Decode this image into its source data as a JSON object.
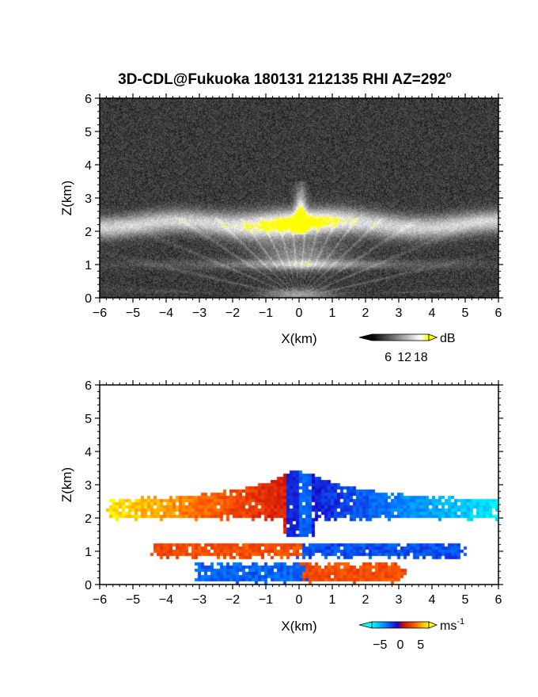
{
  "title": "3D-CDL@Fukuoka 180131 212135 RHI AZ=292",
  "title_superscript": "o",
  "chart_data": [
    {
      "type": "heatmap",
      "panel": "top",
      "quantity": "backscatter intensity",
      "xlabel": "X(km)",
      "ylabel": "Z(km)",
      "xlim": [
        -6,
        6
      ],
      "ylim": [
        0,
        6
      ],
      "xticks": [
        "-6",
        "-5",
        "-4",
        "-3",
        "-2",
        "-1",
        "0",
        "1",
        "2",
        "3",
        "4",
        "5",
        "6"
      ],
      "yticks": [
        "0",
        "1",
        "2",
        "3",
        "4",
        "5",
        "6"
      ],
      "colormap": "grayscale-to-yellow",
      "colorbar": {
        "unit": "dB",
        "ticks": [
          "6",
          "12",
          "18"
        ],
        "range": [
          0,
          21
        ]
      },
      "layers": [
        {
          "feature": "upper cloud layer",
          "x_range": [
            -6,
            6
          ],
          "z_center": 2.2,
          "intensity_dB": 12
        },
        {
          "feature": "saturated core",
          "x_range": [
            -2.2,
            1.8
          ],
          "z_range": [
            1.9,
            2.7
          ],
          "intensity_dB": 21
        },
        {
          "feature": "peak near zenith",
          "x": 0.05,
          "z_top": 3.5,
          "intensity_dB": 21
        },
        {
          "feature": "lower layer",
          "x_range": [
            -4.5,
            5
          ],
          "z_center": 1.0,
          "intensity_dB": 10
        },
        {
          "feature": "near-ground echo",
          "x_range": [
            -1,
            1
          ],
          "z_range": [
            0,
            0.3
          ],
          "intensity_dB": 8
        }
      ]
    },
    {
      "type": "heatmap",
      "panel": "bottom",
      "quantity": "radial (Doppler) velocity",
      "xlabel": "X(km)",
      "ylabel": "Z(km)",
      "xlim": [
        -6,
        6
      ],
      "ylim": [
        0,
        6
      ],
      "xticks": [
        "-6",
        "-5",
        "-4",
        "-3",
        "-2",
        "-1",
        "0",
        "1",
        "2",
        "3",
        "4",
        "5",
        "6"
      ],
      "yticks": [
        "0",
        "1",
        "2",
        "3",
        "4",
        "5",
        "6"
      ],
      "colormap": "cyan-blue-red-yellow",
      "colorbar": {
        "unit": "ms",
        "unit_superscript": "-1",
        "ticks": [
          "-5",
          "0",
          "5"
        ],
        "range": [
          -7,
          7
        ]
      },
      "regions": [
        {
          "feature": "upper layer west",
          "x_range": [
            -5.6,
            0
          ],
          "z_range": [
            1.95,
            2.75
          ],
          "velocity_ms": [
            6.5,
            1
          ]
        },
        {
          "feature": "upper layer east",
          "x_range": [
            0,
            6
          ],
          "z_range": [
            1.95,
            2.75
          ],
          "velocity_ms": [
            -1,
            -6.5
          ]
        },
        {
          "feature": "middle layer west",
          "x_range": [
            -4.3,
            0
          ],
          "z_range": [
            0.85,
            1.2
          ],
          "velocity_ms": 3
        },
        {
          "feature": "middle layer east",
          "x_range": [
            0,
            4.8
          ],
          "z_range": [
            0.85,
            1.2
          ],
          "velocity_ms": -2.5
        },
        {
          "feature": "low layer west",
          "x_range": [
            -3.0,
            0
          ],
          "z_range": [
            0.1,
            0.6
          ],
          "velocity_ms": -3
        },
        {
          "feature": "low layer east",
          "x_range": [
            0,
            3.0
          ],
          "z_range": [
            0.1,
            0.6
          ],
          "velocity_ms": 3
        }
      ]
    }
  ]
}
